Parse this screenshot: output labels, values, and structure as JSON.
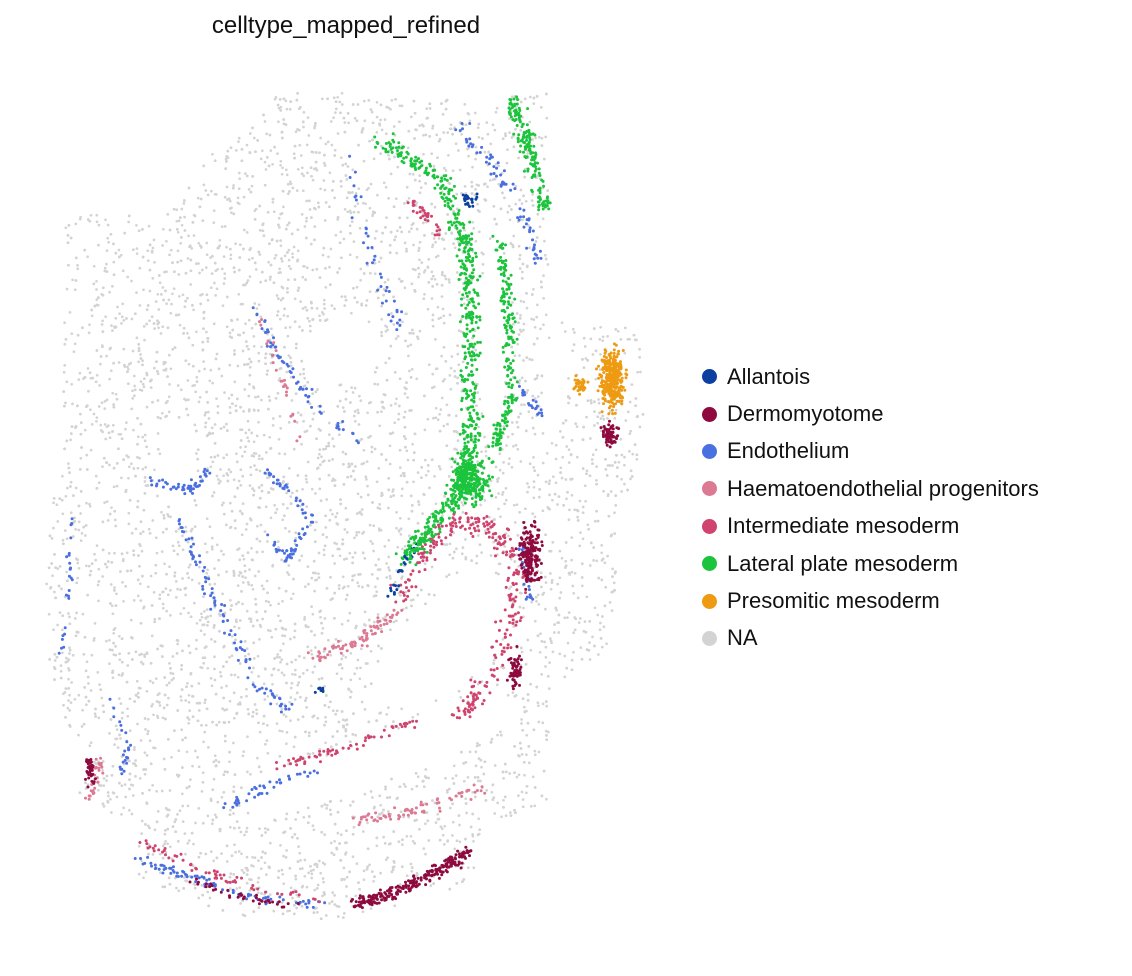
{
  "chart_data": {
    "type": "scatter",
    "title": "celltype_mapped_refined",
    "xlabel": "",
    "ylabel": "",
    "grid": false,
    "axes_visible": false,
    "legend_position": "right",
    "series": [
      {
        "name": "Allantois",
        "color": "#0b3fa0"
      },
      {
        "name": "Dermomyotome",
        "color": "#8e0a3e"
      },
      {
        "name": "Endothelium",
        "color": "#4a6fe0"
      },
      {
        "name": "Haematoendothelial progenitors",
        "color": "#dc7a93"
      },
      {
        "name": "Intermediate mesoderm",
        "color": "#cf436e"
      },
      {
        "name": "Lateral plate mesoderm",
        "color": "#1bc43c"
      },
      {
        "name": "Presomitic mesoderm",
        "color": "#ee9a12"
      },
      {
        "name": "NA",
        "color": "#d3d3d3"
      }
    ]
  }
}
